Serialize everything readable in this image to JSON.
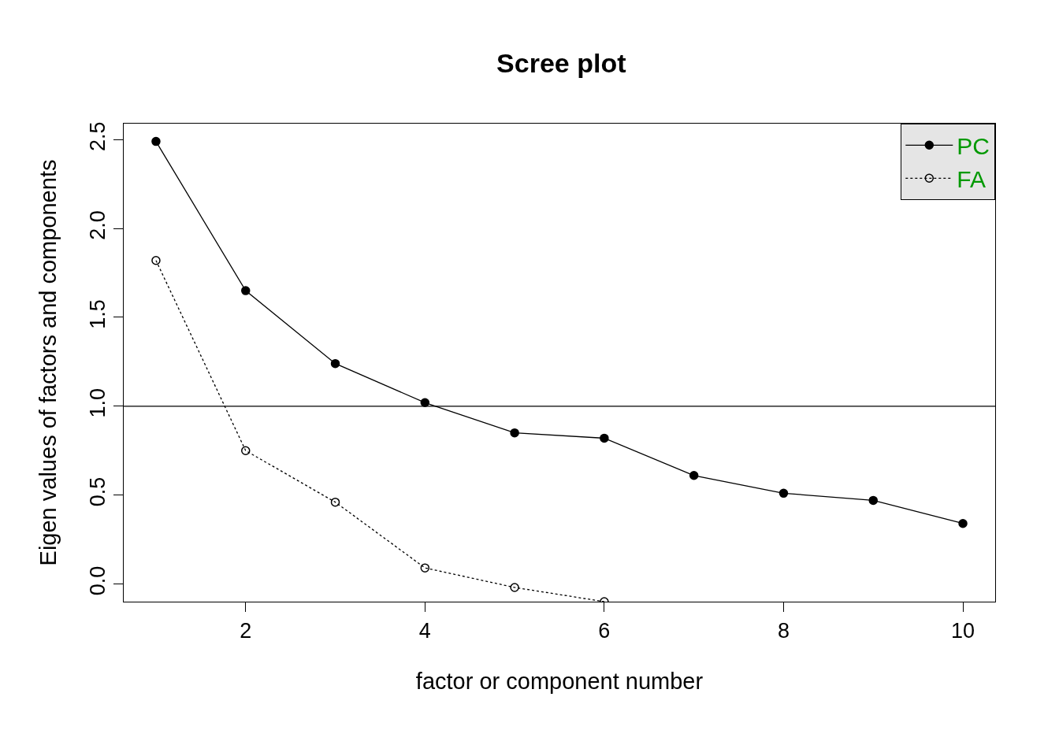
{
  "chart_data": {
    "type": "line",
    "title": "Scree plot",
    "xlabel": "factor or component number",
    "ylabel": "Eigen values of factors and components",
    "series": [
      {
        "name": "PC",
        "color": "#000000",
        "line_style": "solid",
        "marker": "circle",
        "x": [
          1,
          2,
          3,
          4,
          5,
          6,
          7,
          8,
          9,
          10
        ],
        "values": [
          2.49,
          1.65,
          1.24,
          1.02,
          0.85,
          0.82,
          0.61,
          0.51,
          0.47,
          0.34
        ]
      },
      {
        "name": "FA",
        "color": "#000000",
        "line_style": "dotted",
        "marker": "circle",
        "x": [
          1,
          2,
          3,
          4,
          5,
          6
        ],
        "values": [
          1.82,
          0.75,
          0.46,
          0.09,
          -0.02,
          -0.1
        ]
      }
    ],
    "xlim": [
      0.64,
      10.36
    ],
    "xticks": [
      2,
      4,
      6,
      8,
      10
    ],
    "ylim": [
      -0.1,
      2.59
    ],
    "yticks": [
      {
        "value": 0,
        "label": "0.0"
      },
      0.5,
      {
        "value": 1,
        "label": "1.0"
      },
      1.5,
      {
        "value": 2,
        "label": "2.0"
      },
      2.5
    ],
    "ref_lines": [
      {
        "axis": "y",
        "value": 1,
        "color": "#000000",
        "line_style": "solid"
      }
    ],
    "grid": false,
    "legend": "top right"
  }
}
